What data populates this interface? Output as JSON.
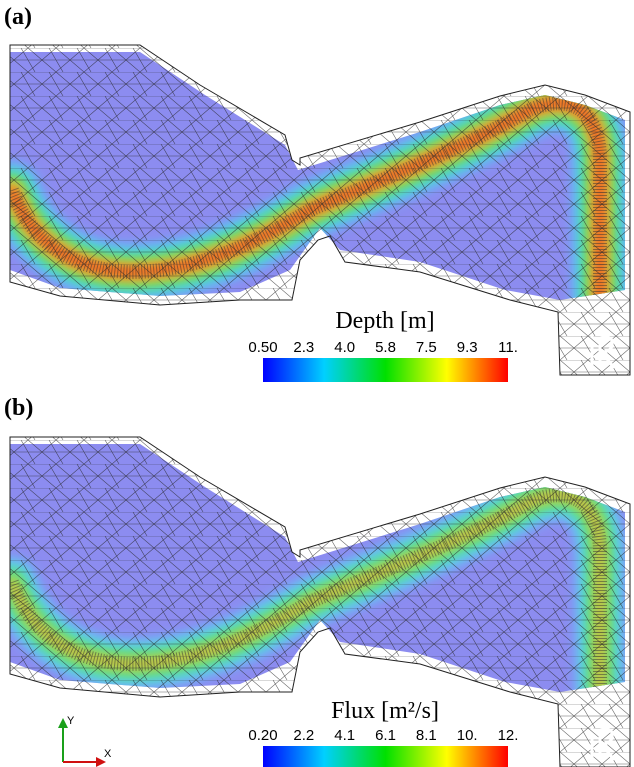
{
  "panels": [
    {
      "label": "(a)",
      "colorbar": {
        "title": "Depth [m]",
        "ticks": [
          "0.50",
          "2.3",
          "4.0",
          "5.8",
          "7.5",
          "9.3",
          "11."
        ]
      }
    },
    {
      "label": "(b)",
      "colorbar": {
        "title": "Flux [m²/s]",
        "ticks": [
          "0.20",
          "2.2",
          "4.1",
          "6.1",
          "8.1",
          "10.",
          "12."
        ]
      },
      "axes": {
        "y": "Y",
        "x": "X"
      }
    }
  ]
}
